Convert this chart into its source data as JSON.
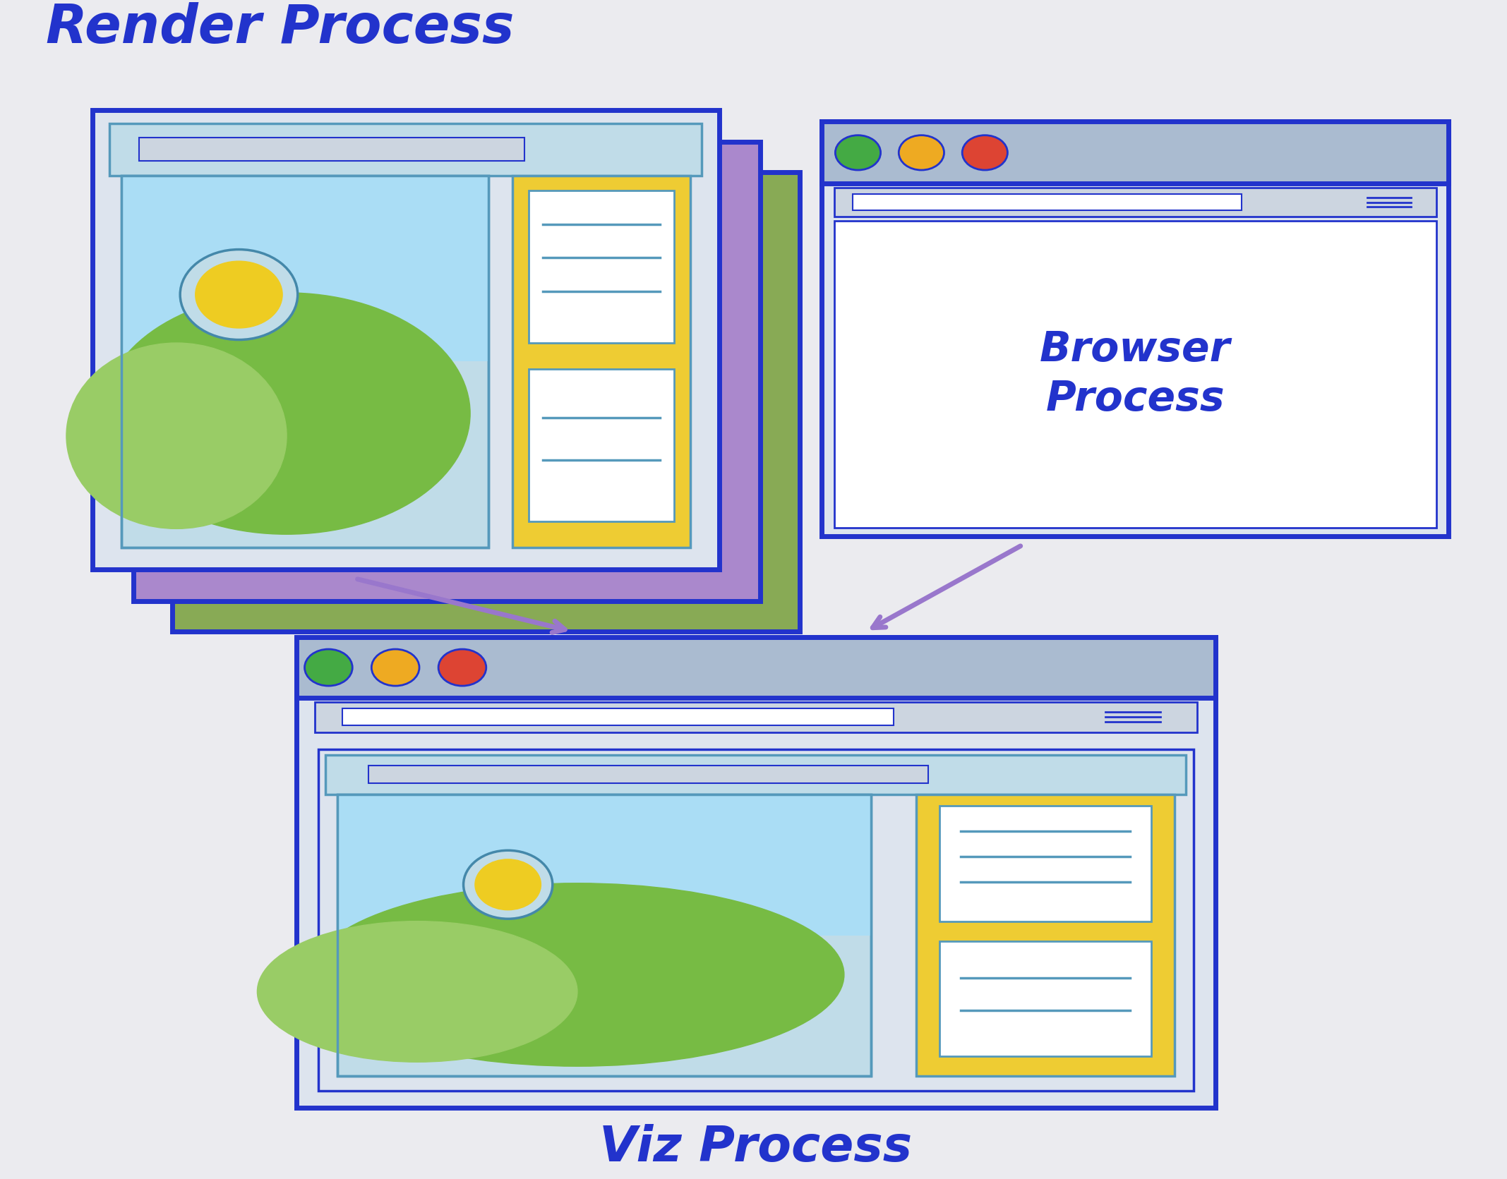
{
  "bg_color": "#ebebef",
  "blue": "#2233cc",
  "blue_mid": "#3355dd",
  "teal": "#5599bb",
  "teal_light": "#99ccdd",
  "teal_lighter": "#c0dce8",
  "yellow": "#eecc33",
  "green": "#77bb44",
  "green_light": "#99cc66",
  "purple_layer": "#aa88cc",
  "green_layer": "#88aa55",
  "gray_bar": "#aabbd0",
  "gray_content": "#ccd5e0",
  "gray_light": "#dde4ee",
  "white": "#ffffff",
  "red_dot": "#dd4433",
  "orange_dot": "#eeaa22",
  "green_dot": "#44aa44",
  "arrow_color": "#9977cc",
  "title_color": "#2233cc",
  "sun_yellow": "#eecc22",
  "sun_ring": "#4488aa",
  "render_label": "Render Process",
  "browser_label": "Browser\nProcess",
  "viz_label": "Viz Process"
}
